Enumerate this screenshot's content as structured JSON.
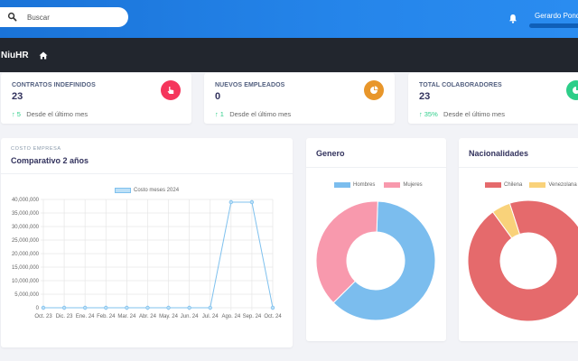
{
  "header": {
    "search_placeholder": "Buscar",
    "user_name": "Gerardo Ponce"
  },
  "nav": {
    "brand": "NiuHR"
  },
  "stats": [
    {
      "title": "CONTRATOS INDEFINIDOS",
      "value": "23",
      "change": "5",
      "period": "Desde el último mes",
      "icon": "hand-pointer-icon",
      "color": "#f5365c"
    },
    {
      "title": "NUEVOS EMPLEADOS",
      "value": "0",
      "change": "1",
      "period": "Desde el último mes",
      "icon": "chart-pie-icon",
      "color": "#e8962a"
    },
    {
      "title": "TOTAL COLABORADORES",
      "value": "23",
      "change": "35%",
      "period": "Desde el último mes",
      "icon": "chart-pie-icon",
      "color": "#2dce89"
    }
  ],
  "cost_card": {
    "eyebrow": "COSTO EMPRESA",
    "title": "Comparativo 2 años"
  },
  "gender_card": {
    "title": "Genero"
  },
  "nationality_card": {
    "title": "Nacionalidades"
  },
  "chart_data": [
    {
      "type": "line",
      "title": "",
      "series": [
        {
          "name": "Costo meses 2024",
          "color": "#7fc1ee",
          "values": [
            0,
            0,
            0,
            0,
            0,
            0,
            0,
            0,
            0,
            39000000,
            39000000,
            0
          ]
        }
      ],
      "categories": [
        "Oct. 23",
        "Dic. 23",
        "Ene. 24",
        "Feb. 24",
        "Mar. 24",
        "Abr. 24",
        "May. 24",
        "Jun. 24",
        "Jul. 24",
        "Ago. 24",
        "Sep. 24",
        "Oct. 24"
      ],
      "ylim": [
        0,
        40000000
      ],
      "yticks": [
        "0",
        "5,000,000",
        "10,000,000",
        "15,000,000",
        "20,000,000",
        "25,000,000",
        "30,000,000",
        "35,000,000",
        "40,000,000"
      ],
      "grid": true,
      "legend": "top"
    },
    {
      "type": "pie",
      "donut": true,
      "categories": [
        "Hombres",
        "Mujeres"
      ],
      "values": [
        62,
        38
      ],
      "colors": [
        "#7bbdee",
        "#f899ad"
      ],
      "legend": "top"
    },
    {
      "type": "pie",
      "donut": true,
      "categories": [
        "Chilena",
        "Venezolana"
      ],
      "values": [
        95,
        5
      ],
      "colors": [
        "#e56a6c",
        "#f9d27a"
      ],
      "legend": "top"
    }
  ]
}
